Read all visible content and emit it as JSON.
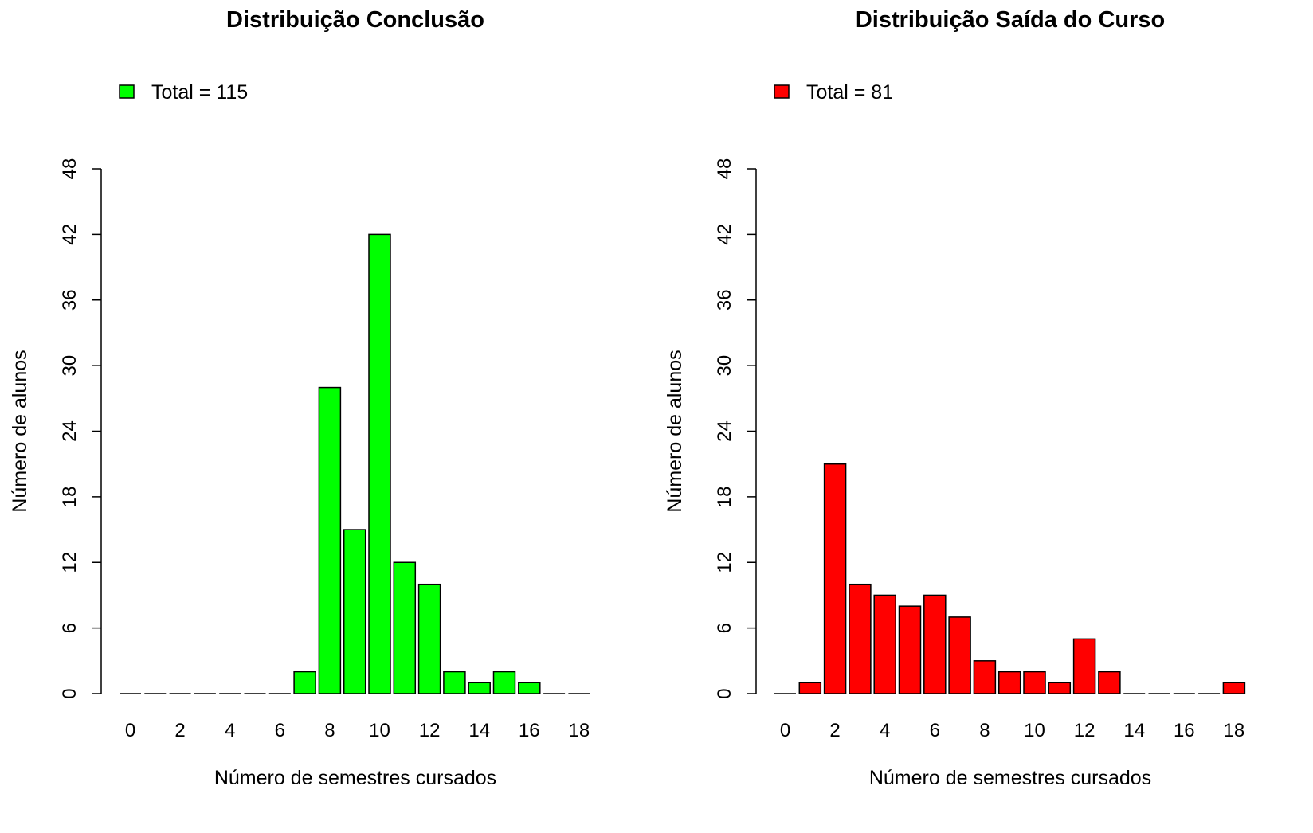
{
  "chart_data": [
    {
      "type": "bar",
      "title": "Distribuição Conclusão",
      "xlabel": "Número de semestres cursados",
      "ylabel": "Número de alunos",
      "legend": {
        "label": "Total = 115",
        "color": "#00ff00",
        "position": "top-left"
      },
      "color": "#00ff00",
      "x": [
        0,
        1,
        2,
        3,
        4,
        5,
        6,
        7,
        8,
        9,
        10,
        11,
        12,
        13,
        14,
        15,
        16,
        17,
        18
      ],
      "values": [
        0,
        0,
        0,
        0,
        0,
        0,
        0,
        2,
        28,
        15,
        42,
        12,
        10,
        2,
        1,
        2,
        1,
        0,
        0
      ],
      "xticks": [
        "0",
        "2",
        "4",
        "6",
        "8",
        "10",
        "12",
        "14",
        "16",
        "18"
      ],
      "yticks": [
        "0",
        "6",
        "12",
        "18",
        "24",
        "30",
        "36",
        "42",
        "48"
      ],
      "ylim": [
        0,
        48
      ],
      "grid": false
    },
    {
      "type": "bar",
      "title": "Distribuição Saída do Curso",
      "xlabel": "Número de semestres cursados",
      "ylabel": "Número de alunos",
      "legend": {
        "label": "Total = 81",
        "color": "#ff0000",
        "position": "top-left"
      },
      "color": "#ff0000",
      "x": [
        0,
        1,
        2,
        3,
        4,
        5,
        6,
        7,
        8,
        9,
        10,
        11,
        12,
        13,
        14,
        15,
        16,
        17,
        18
      ],
      "values": [
        0,
        1,
        21,
        10,
        9,
        8,
        9,
        7,
        3,
        2,
        2,
        1,
        5,
        2,
        0,
        0,
        0,
        0,
        1
      ],
      "xticks": [
        "0",
        "2",
        "4",
        "6",
        "8",
        "10",
        "12",
        "14",
        "16",
        "18"
      ],
      "yticks": [
        "0",
        "6",
        "12",
        "18",
        "24",
        "30",
        "36",
        "42",
        "48"
      ],
      "ylim": [
        0,
        48
      ],
      "grid": false
    }
  ]
}
